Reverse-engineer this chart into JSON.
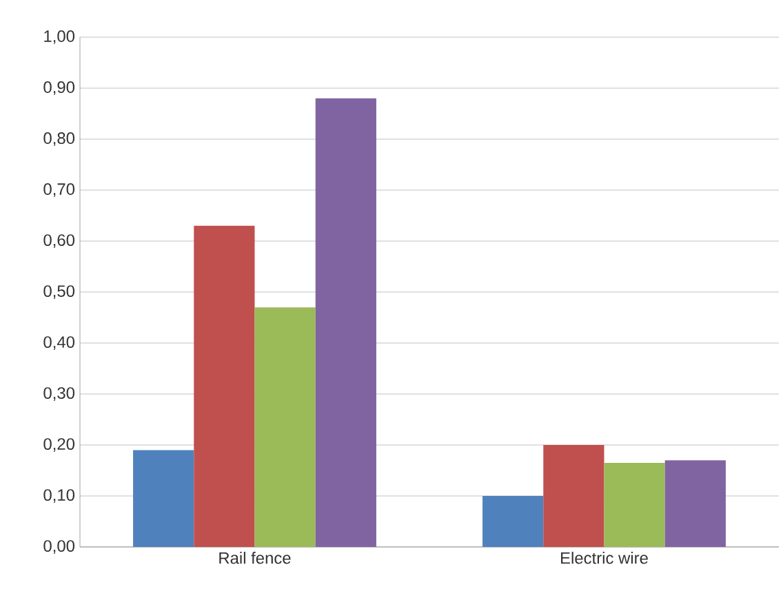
{
  "chart_data": {
    "type": "bar",
    "categories": [
      "Rail fence",
      "Electric wire"
    ],
    "series": [
      {
        "color": "#4f81bd",
        "values": [
          0.19,
          0.1
        ]
      },
      {
        "color": "#c0504d",
        "values": [
          0.63,
          0.2
        ]
      },
      {
        "color": "#9bbb59",
        "values": [
          0.47,
          0.165
        ]
      },
      {
        "color": "#8064a2",
        "values": [
          0.88,
          0.17
        ]
      }
    ],
    "ylim": [
      0,
      1
    ],
    "yticks": [
      {
        "value": 0,
        "label": "0,00"
      },
      {
        "value": 0.1,
        "label": "0,10"
      },
      {
        "value": 0.2,
        "label": "0,20"
      },
      {
        "value": 0.3,
        "label": "0,30"
      },
      {
        "value": 0.4,
        "label": "0,40"
      },
      {
        "value": 0.5,
        "label": "0,50"
      },
      {
        "value": 0.6,
        "label": "0,60"
      },
      {
        "value": 0.7,
        "label": "0,70"
      },
      {
        "value": 0.8,
        "label": "0,80"
      },
      {
        "value": 0.9,
        "label": "0,90"
      },
      {
        "value": 1,
        "label": "1,00"
      }
    ],
    "grid": "y"
  }
}
